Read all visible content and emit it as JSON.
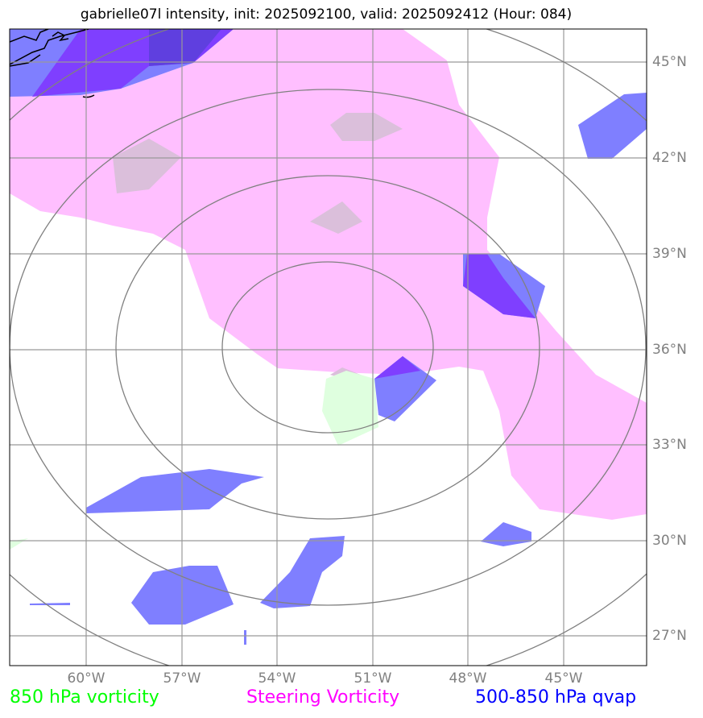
{
  "title": "gabrielle07l intensity, init: 2025092100, valid: 2025092412 (Hour: 084)",
  "lat_labels": [
    "45°N",
    "42°N",
    "39°N",
    "36°N",
    "33°N",
    "30°N",
    "27°N"
  ],
  "lon_labels": [
    "60°W",
    "57°W",
    "54°W",
    "51°W",
    "48°W",
    "45°W"
  ],
  "legend": [
    {
      "label": "850 hPa vorticity",
      "color": "#00ff00"
    },
    {
      "label": "Steering Vorticity",
      "color": "#ff00ff"
    },
    {
      "label": "500-850 hPa qvap",
      "color": "#0000ff"
    }
  ],
  "colors": {
    "steering": "#ffbfff",
    "qvap": "#7f7fff",
    "overlap": "#7f3fff",
    "vort850": "#dfffdf",
    "mixed": "#dbbfdb"
  }
}
